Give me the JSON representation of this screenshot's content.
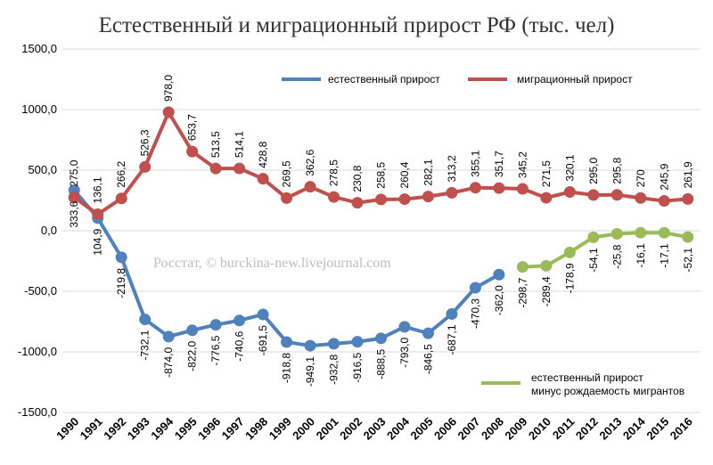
{
  "chart_data": {
    "type": "line",
    "title": "Естественный и миграционный прирост РФ (тыс. чел)",
    "watermark": "Росстат, © burckina-new.livejournal.com",
    "ylim": [
      -1500,
      1500
    ],
    "yticks": [
      "1500,0",
      "1000,0",
      "500,0",
      "0,0",
      "-500,0",
      "-1000,0",
      "-1500,0"
    ],
    "ytick_values": [
      1500,
      1000,
      500,
      0,
      -500,
      -1000,
      -1500
    ],
    "grid": true,
    "x": [
      "1990",
      "1991",
      "1992",
      "1993",
      "1994",
      "1995",
      "1996",
      "1997",
      "1998",
      "1999",
      "2000",
      "2001",
      "2002",
      "2003",
      "2004",
      "2005",
      "2006",
      "2007",
      "2008",
      "2009",
      "2010",
      "2011",
      "2012",
      "2013",
      "2014",
      "2015",
      "2016"
    ],
    "series": [
      {
        "name": "естественный прирост",
        "color": "#4f81bd",
        "values": [
          333.6,
          104.9,
          -219.8,
          -732.1,
          -874.0,
          -822.0,
          -776.5,
          -740.6,
          -691.5,
          -918.8,
          -949.1,
          -932.8,
          -916.5,
          -888.5,
          -793.0,
          -846.5,
          -687.1,
          -470.3,
          -362.0,
          null,
          null,
          null,
          null,
          null,
          null,
          null,
          null
        ],
        "labels": [
          "333,6",
          "104,9",
          "-219,8",
          "-732,1",
          "-874,0",
          "-822,0",
          "-776,5",
          "-740,6",
          "-691,5",
          "-918,8",
          "-949,1",
          "-932,8",
          "-916,5",
          "-888,5",
          "-793,0",
          "-846,5",
          "-687,1",
          "-470,3",
          "-362,0",
          null,
          null,
          null,
          null,
          null,
          null,
          null,
          null
        ]
      },
      {
        "name": "миграционный прирост",
        "color": "#c0504d",
        "values": [
          275.0,
          136.1,
          266.2,
          526.3,
          978.0,
          653.7,
          513.5,
          514.1,
          428.8,
          269.5,
          362.6,
          278.5,
          230.8,
          258.5,
          260.4,
          282.1,
          313.2,
          355.1,
          351.7,
          345.2,
          271.5,
          320.1,
          295.0,
          295.8,
          270,
          245.9,
          261.9
        ],
        "labels": [
          "275,0",
          "136,1",
          "266,2",
          "526,3",
          "978,0",
          "653,7",
          "513,5",
          "514,1",
          "428,8",
          "269,5",
          "362,6",
          "278,5",
          "230,8",
          "258,5",
          "260,4",
          "282,1",
          "313,2",
          "355,1",
          "351,7",
          "345,2",
          "271,5",
          "320,1",
          "295,0",
          "295,8",
          "270",
          "245,9",
          "261,9"
        ]
      },
      {
        "name": "естественный прирост минус рождаемость мигрантов",
        "name_lines": [
          "естественный прирост",
          "минус рождаемость мигрантов"
        ],
        "color": "#9bbb59",
        "values": [
          null,
          null,
          null,
          null,
          null,
          null,
          null,
          null,
          null,
          null,
          null,
          null,
          null,
          null,
          null,
          null,
          null,
          null,
          null,
          -298.7,
          -289.4,
          -178.9,
          -54.1,
          -25.8,
          -16.1,
          -17.1,
          -52.1
        ],
        "labels": [
          null,
          null,
          null,
          null,
          null,
          null,
          null,
          null,
          null,
          null,
          null,
          null,
          null,
          null,
          null,
          null,
          null,
          null,
          null,
          "-298,7",
          "-289,4",
          "-178,9",
          "-54,1",
          "-25,8",
          "-16,1",
          "-17,1",
          "-52,1"
        ]
      }
    ]
  }
}
